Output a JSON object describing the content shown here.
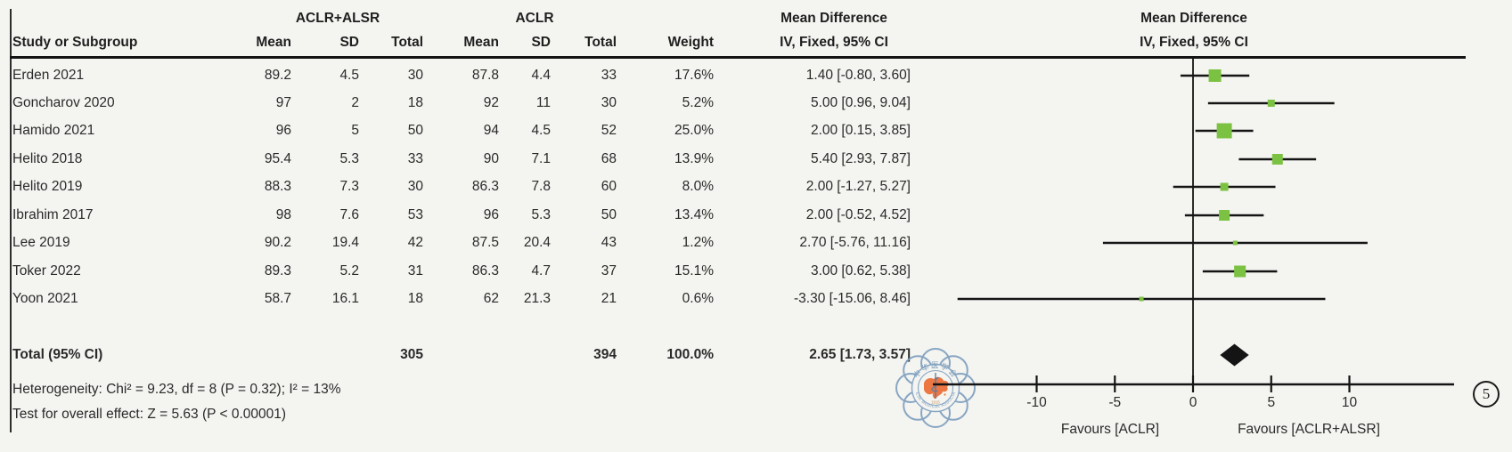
{
  "panel_label": "5",
  "colors": {
    "marker_green": "#7cc242",
    "ci_black": "#141414",
    "zero_line": "#2b2b2b",
    "axis": "#141414",
    "text": "#2a2a2a",
    "logo_blue": "#6e93b5",
    "logo_orange": "#ed6d35",
    "background": "#f4f4f1"
  },
  "table": {
    "group1_header": "ACLR+ALSR",
    "group2_header": "ACLR",
    "study_header": "Study or Subgroup",
    "cols": [
      "Mean",
      "SD",
      "Total",
      "Mean",
      "SD",
      "Total",
      "Weight"
    ],
    "md_header_line1": "Mean Difference",
    "md_header_line2": "IV, Fixed, 95% CI",
    "plot_header_line1": "Mean Difference",
    "plot_header_line2": "IV, Fixed, 95% CI"
  },
  "chart_data": {
    "type": "forest",
    "effect_measure": "Mean Difference",
    "method": "IV, Fixed, 95% CI",
    "studies": [
      {
        "name": "Erden 2021",
        "mean1": "89.2",
        "sd1": "4.5",
        "total1": "30",
        "mean2": "87.8",
        "sd2": "4.4",
        "total2": "33",
        "weight": "17.6%",
        "ci_text": "1.40 [-0.80, 3.60]",
        "md": 1.4,
        "lo": -0.8,
        "hi": 3.6,
        "weight_value": 17.6
      },
      {
        "name": "Goncharov 2020",
        "mean1": "97",
        "sd1": "2",
        "total1": "18",
        "mean2": "92",
        "sd2": "11",
        "total2": "30",
        "weight": "5.2%",
        "ci_text": "5.00 [0.96, 9.04]",
        "md": 5.0,
        "lo": 0.96,
        "hi": 9.04,
        "weight_value": 5.2
      },
      {
        "name": "Hamido 2021",
        "mean1": "96",
        "sd1": "5",
        "total1": "50",
        "mean2": "94",
        "sd2": "4.5",
        "total2": "52",
        "weight": "25.0%",
        "ci_text": "2.00 [0.15, 3.85]",
        "md": 2.0,
        "lo": 0.15,
        "hi": 3.85,
        "weight_value": 25.0
      },
      {
        "name": "Helito 2018",
        "mean1": "95.4",
        "sd1": "5.3",
        "total1": "33",
        "mean2": "90",
        "sd2": "7.1",
        "total2": "68",
        "weight": "13.9%",
        "ci_text": "5.40 [2.93, 7.87]",
        "md": 5.4,
        "lo": 2.93,
        "hi": 7.87,
        "weight_value": 13.9
      },
      {
        "name": "Helito 2019",
        "mean1": "88.3",
        "sd1": "7.3",
        "total1": "30",
        "mean2": "86.3",
        "sd2": "7.8",
        "total2": "60",
        "weight": "8.0%",
        "ci_text": "2.00 [-1.27, 5.27]",
        "md": 2.0,
        "lo": -1.27,
        "hi": 5.27,
        "weight_value": 8.0
      },
      {
        "name": "Ibrahim 2017",
        "mean1": "98",
        "sd1": "7.6",
        "total1": "53",
        "mean2": "96",
        "sd2": "5.3",
        "total2": "50",
        "weight": "13.4%",
        "ci_text": "2.00 [-0.52, 4.52]",
        "md": 2.0,
        "lo": -0.52,
        "hi": 4.52,
        "weight_value": 13.4
      },
      {
        "name": "Lee 2019",
        "mean1": "90.2",
        "sd1": "19.4",
        "total1": "42",
        "mean2": "87.5",
        "sd2": "20.4",
        "total2": "43",
        "weight": "1.2%",
        "ci_text": "2.70 [-5.76, 11.16]",
        "md": 2.7,
        "lo": -5.76,
        "hi": 11.16,
        "weight_value": 1.2
      },
      {
        "name": "Toker 2022",
        "mean1": "89.3",
        "sd1": "5.2",
        "total1": "31",
        "mean2": "86.3",
        "sd2": "4.7",
        "total2": "37",
        "weight": "15.1%",
        "ci_text": "3.00 [0.62, 5.38]",
        "md": 3.0,
        "lo": 0.62,
        "hi": 5.38,
        "weight_value": 15.1
      },
      {
        "name": "Yoon 2021",
        "mean1": "58.7",
        "sd1": "16.1",
        "total1": "18",
        "mean2": "62",
        "sd2": "21.3",
        "total2": "21",
        "weight": "0.6%",
        "ci_text": "-3.30 [-15.06, 8.46]",
        "md": -3.3,
        "lo": -15.06,
        "hi": 8.46,
        "weight_value": 0.6
      }
    ],
    "total": {
      "label": "Total (95% CI)",
      "total1": "305",
      "total2": "394",
      "weight": "100.0%",
      "ci_text": "2.65 [1.73, 3.57]",
      "md": 2.65,
      "lo": 1.73,
      "hi": 3.57
    },
    "heterogeneity": "Heterogeneity: Chi² = 9.23, df = 8 (P = 0.32); I² = 13%",
    "overall_effect": "Test for overall effect: Z = 5.63 (P < 0.00001)",
    "axis": {
      "ticks": [
        -10,
        -5,
        0,
        5,
        10
      ],
      "tick_labels": [
        "-10",
        "-5",
        "0",
        "5",
        "10"
      ],
      "min": -16.6,
      "max": 16.6,
      "zero_line": true
    },
    "xlabel_left": "Favours [ACLR]",
    "xlabel_right": "Favours [ACLR+ALSR]",
    "legend_position": "none",
    "grid": false
  },
  "watermark": {
    "org_cn": "中华医学会",
    "org_en": "CHINESE MEDICAL ASSOCIATION",
    "year": "1915"
  }
}
